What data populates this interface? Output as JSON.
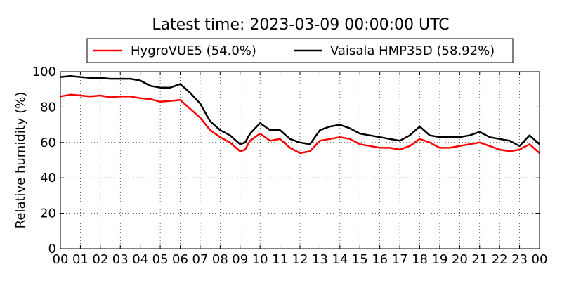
{
  "chart_data": {
    "type": "line",
    "title": "Latest time: 2023-03-09 00:00:00 UTC",
    "xlabel": "",
    "ylabel": "Relative humidity (%)",
    "xlim": [
      0,
      24
    ],
    "ylim": [
      0,
      100
    ],
    "grid": true,
    "legend_position": "top-center",
    "x_ticks": [
      "00",
      "01",
      "02",
      "03",
      "04",
      "05",
      "06",
      "07",
      "08",
      "09",
      "10",
      "11",
      "12",
      "13",
      "14",
      "15",
      "16",
      "17",
      "18",
      "19",
      "20",
      "21",
      "22",
      "23",
      "00"
    ],
    "y_ticks": [
      0,
      20,
      40,
      60,
      80,
      100
    ],
    "x": [
      0,
      0.5,
      1,
      1.5,
      2,
      2.5,
      3,
      3.5,
      4,
      4.5,
      5,
      5.5,
      6,
      6.5,
      7,
      7.5,
      8,
      8.5,
      9,
      9.25,
      9.5,
      10,
      10.5,
      11,
      11.5,
      12,
      12.5,
      13,
      13.5,
      14,
      14.5,
      15,
      15.5,
      16,
      16.5,
      17,
      17.5,
      18,
      18.5,
      19,
      19.5,
      20,
      20.5,
      21,
      21.5,
      22,
      22.5,
      23,
      23.5,
      24
    ],
    "series": [
      {
        "name": "HygroVUE5 (54.0%)",
        "color": "#ff0000",
        "values": [
          86,
          87,
          86.5,
          86,
          86.5,
          85.5,
          86,
          86,
          85,
          84.5,
          83,
          83.5,
          84,
          79,
          74,
          67,
          63,
          60,
          55,
          56,
          61,
          65,
          61,
          62,
          57,
          54,
          55,
          61,
          62,
          63,
          62,
          59,
          58,
          57,
          57,
          56,
          58,
          62,
          60,
          57,
          57,
          58,
          59,
          60,
          58,
          56,
          55,
          56,
          59,
          54
        ]
      },
      {
        "name": "Vaisala HMP35D (58.92%)",
        "color": "#000000",
        "values": [
          97,
          97.5,
          97,
          96.5,
          96.5,
          96,
          96,
          96,
          95,
          92,
          91,
          91,
          93,
          88,
          82,
          72,
          67,
          64,
          59,
          60,
          65,
          71,
          67,
          67,
          62,
          60,
          59,
          67,
          69,
          70,
          68,
          65,
          64,
          63,
          62,
          61,
          64,
          69,
          64,
          63,
          63,
          63,
          64,
          66,
          63,
          62,
          61,
          58,
          64,
          59
        ]
      }
    ]
  }
}
